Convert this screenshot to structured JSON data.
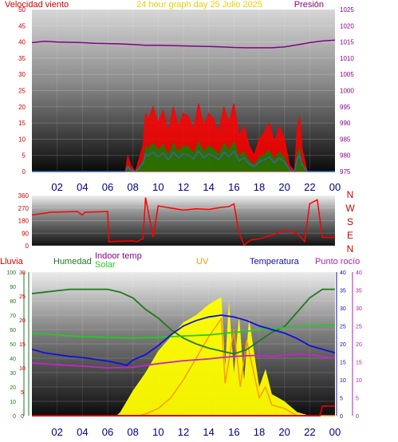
{
  "panels": {
    "wind": {
      "title_left": "Velocidad viento",
      "title_center": "24 hour graph day   25 Julio 2025",
      "title_right": "Presión",
      "left_ticks": [
        "0",
        "5",
        "10",
        "15",
        "20",
        "25",
        "30",
        "35",
        "40",
        "45",
        "50"
      ],
      "right_ticks": [
        "975",
        "980",
        "985",
        "990",
        "995",
        "1000",
        "1005",
        "1010",
        "1015",
        "1020",
        "1025"
      ],
      "x_ticks": [
        "02",
        "04",
        "06",
        "08",
        "10",
        "12",
        "14",
        "16",
        "18",
        "20",
        "22",
        "00"
      ]
    },
    "direction": {
      "left_ticks": [
        "0",
        "90",
        "180",
        "270",
        "360"
      ],
      "compass": [
        "N",
        "W",
        "S",
        "E",
        "N"
      ]
    },
    "multi": {
      "labels": {
        "rain": "Lluvia",
        "humidity": "Humedad",
        "indoor": "Indoor temp",
        "solar": "Solar",
        "uv": "UV",
        "temperature": "Temperatura",
        "dewpoint": "Punto rocío"
      },
      "hum_ticks": [
        "0",
        "10",
        "20",
        "30",
        "40",
        "50",
        "60",
        "70",
        "80",
        "90",
        "100"
      ],
      "rain_ticks": [
        "0",
        "5",
        "10",
        "15",
        "20",
        "25",
        "30"
      ],
      "temp_ticks": [
        "0",
        "5",
        "10",
        "15",
        "20",
        "25",
        "30",
        "35",
        "40"
      ],
      "dew_ticks": [
        "0",
        "5",
        "10",
        "15",
        "20",
        "25",
        "30",
        "35",
        "40"
      ],
      "x_ticks": [
        "02",
        "04",
        "06",
        "08",
        "10",
        "12",
        "14",
        "16",
        "18",
        "20",
        "22",
        "00"
      ]
    }
  },
  "colors": {
    "wind": "#ff0000",
    "gust_detail": "#008800",
    "avg_wind": "#3366aa",
    "pressure": "#880088",
    "direction": "#ff0000",
    "humidity": "#1e7a1e",
    "indoor": "#22cc22",
    "temperature": "#1010dd",
    "dewpoint": "#cc22cc",
    "solar": "#ffff00",
    "uv": "#ff9900",
    "rain": "#cc0000"
  },
  "chart_data": [
    {
      "type": "line",
      "title": "24 hour graph day   25 Julio 2025",
      "x_unit": "hour",
      "xlim": [
        0,
        24
      ],
      "ylim": [
        0,
        50
      ],
      "y2lim": [
        975,
        1025
      ],
      "series": [
        {
          "name": "Velocidad viento",
          "axis": "left",
          "x": [
            0,
            7.4,
            7.6,
            7.8,
            8.2,
            8.8,
            9.0,
            9.2,
            9.6,
            10.0,
            10.4,
            10.8,
            11.2,
            11.6,
            12.0,
            12.4,
            12.8,
            13.2,
            13.6,
            14.0,
            14.4,
            14.8,
            15.2,
            15.6,
            16.0,
            16.4,
            16.8,
            17.2,
            17.6,
            18.0,
            18.4,
            18.8,
            19.2,
            19.6,
            20.0,
            20.4,
            20.8,
            21.0,
            21.2,
            21.4,
            21.8,
            24
          ],
          "y": [
            0,
            0,
            5,
            2,
            0,
            8,
            18,
            16,
            20,
            15,
            19,
            12,
            20,
            14,
            18,
            17,
            13,
            21,
            14,
            18,
            16,
            12,
            20,
            15,
            21,
            11,
            14,
            8,
            5,
            10,
            12,
            15,
            9,
            14,
            10,
            2,
            0,
            13,
            17,
            7,
            0,
            0
          ]
        },
        {
          "name": "Presión",
          "axis": "right",
          "x": [
            0,
            1,
            2,
            3,
            4,
            5,
            6,
            7,
            8,
            9,
            10,
            11,
            12,
            13,
            14,
            15,
            16,
            17,
            18,
            19,
            20,
            21,
            22,
            23,
            24
          ],
          "y": [
            1014.8,
            1015.2,
            1015.0,
            1014.9,
            1014.8,
            1014.6,
            1014.5,
            1014.4,
            1014.2,
            1014.0,
            1014.0,
            1013.9,
            1013.8,
            1013.7,
            1013.6,
            1013.5,
            1013.3,
            1013.2,
            1013.2,
            1013.2,
            1013.5,
            1014.1,
            1014.8,
            1015.3,
            1015.6
          ]
        }
      ]
    },
    {
      "type": "line",
      "x_unit": "hour",
      "xlim": [
        0,
        24
      ],
      "ylim": [
        0,
        360
      ],
      "series": [
        {
          "name": "direction",
          "x": [
            0,
            1.5,
            3.6,
            4.0,
            4.2,
            6.0,
            6.1,
            8.0,
            8.3,
            8.8,
            9.0,
            9.6,
            10.0,
            11.0,
            12.0,
            13.0,
            14.0,
            15.0,
            15.6,
            16.0,
            16.4,
            16.8,
            17.3,
            18.0,
            19.0,
            20.0,
            21.0,
            21.6,
            22.0,
            22.6,
            23.0,
            24
          ],
          "y": [
            220,
            240,
            245,
            220,
            240,
            245,
            30,
            35,
            30,
            50,
            345,
            60,
            285,
            270,
            255,
            265,
            260,
            275,
            280,
            300,
            95,
            5,
            40,
            50,
            75,
            110,
            90,
            30,
            300,
            330,
            60,
            60
          ]
        }
      ]
    },
    {
      "type": "line",
      "x_unit": "hour",
      "xlim": [
        0,
        24
      ],
      "series": [
        {
          "name": "Humedad",
          "axis": "humidity %",
          "ylim": [
            0,
            100
          ],
          "x": [
            0,
            1,
            2,
            3,
            4,
            5,
            6,
            7,
            8,
            9,
            10,
            11,
            12,
            13,
            14,
            15,
            16,
            17,
            18,
            19,
            20,
            21,
            22,
            23,
            24
          ],
          "y": [
            85,
            86,
            87,
            88,
            88,
            88,
            88,
            86,
            82,
            74,
            68,
            60,
            54,
            50,
            47,
            45,
            43,
            46,
            52,
            58,
            62,
            72,
            82,
            88,
            88
          ]
        },
        {
          "name": "Indoor temp",
          "axis": "temp °C",
          "ylim": [
            0,
            40
          ],
          "x": [
            0,
            2,
            4,
            6,
            8,
            10,
            12,
            14,
            16,
            18,
            20,
            22,
            24
          ],
          "y": [
            23.0,
            22.5,
            22.0,
            21.8,
            21.6,
            21.8,
            22.2,
            22.5,
            23.2,
            23.8,
            24.5,
            25.0,
            25.4
          ]
        },
        {
          "name": "Temperatura",
          "axis": "temp °C",
          "ylim": [
            0,
            40
          ],
          "x": [
            0,
            1,
            2,
            3,
            4,
            5,
            6,
            7,
            7.5,
            8,
            9,
            10,
            11,
            12,
            13,
            14,
            15,
            16,
            17,
            18,
            19,
            20,
            21,
            22,
            23,
            24
          ],
          "y": [
            18.5,
            17.5,
            17.0,
            16.5,
            16.2,
            15.7,
            15.2,
            14.5,
            14.0,
            15.5,
            17.0,
            19.5,
            22.5,
            25.0,
            26.5,
            27.5,
            28.0,
            27.5,
            26.5,
            25.0,
            24.0,
            23.0,
            21.5,
            19.5,
            18.5,
            17.5
          ]
        },
        {
          "name": "Punto rocío",
          "axis": "temp °C",
          "ylim": [
            0,
            40
          ],
          "x": [
            0,
            2,
            4,
            6,
            8,
            10,
            12,
            14,
            15,
            16,
            17,
            18,
            19,
            20,
            21,
            22,
            23,
            24
          ],
          "y": [
            14.7,
            14.2,
            13.8,
            13.3,
            13.5,
            14.5,
            15.3,
            15.8,
            16.2,
            16.5,
            16.7,
            16.8,
            16.5,
            16.8,
            17.2,
            17.0,
            16.5,
            16.0
          ]
        },
        {
          "name": "Solar",
          "axis": "index",
          "ylim": [
            0,
            40
          ],
          "x": [
            0,
            6.7,
            7.0,
            8,
            9,
            10,
            11,
            12,
            13,
            14,
            15,
            15.3,
            15.6,
            16.0,
            16.4,
            16.8,
            17.2,
            18,
            18.5,
            19,
            20,
            21,
            22,
            24
          ],
          "y": [
            0,
            0,
            1,
            7,
            12,
            18,
            22,
            26,
            28,
            31,
            33,
            14,
            32,
            12,
            28,
            10,
            27,
            8,
            13,
            6,
            4,
            1,
            0,
            0
          ]
        },
        {
          "name": "UV",
          "axis": "index",
          "ylim": [
            0,
            40
          ],
          "x": [
            0,
            8.5,
            9,
            10,
            11,
            12,
            13,
            14,
            15,
            15.3,
            16,
            16.5,
            17,
            18,
            18.5,
            19,
            20,
            21,
            24
          ],
          "y": [
            0,
            0,
            0.5,
            2,
            5,
            10,
            16,
            22,
            27,
            9,
            24,
            8,
            21,
            5,
            8,
            3,
            2,
            0,
            0
          ]
        },
        {
          "name": "Lluvia",
          "axis": "rain",
          "ylim": [
            0,
            30
          ],
          "x": [
            0,
            22.8,
            23.0,
            24
          ],
          "y": [
            0,
            0,
            2,
            2
          ]
        }
      ]
    }
  ]
}
